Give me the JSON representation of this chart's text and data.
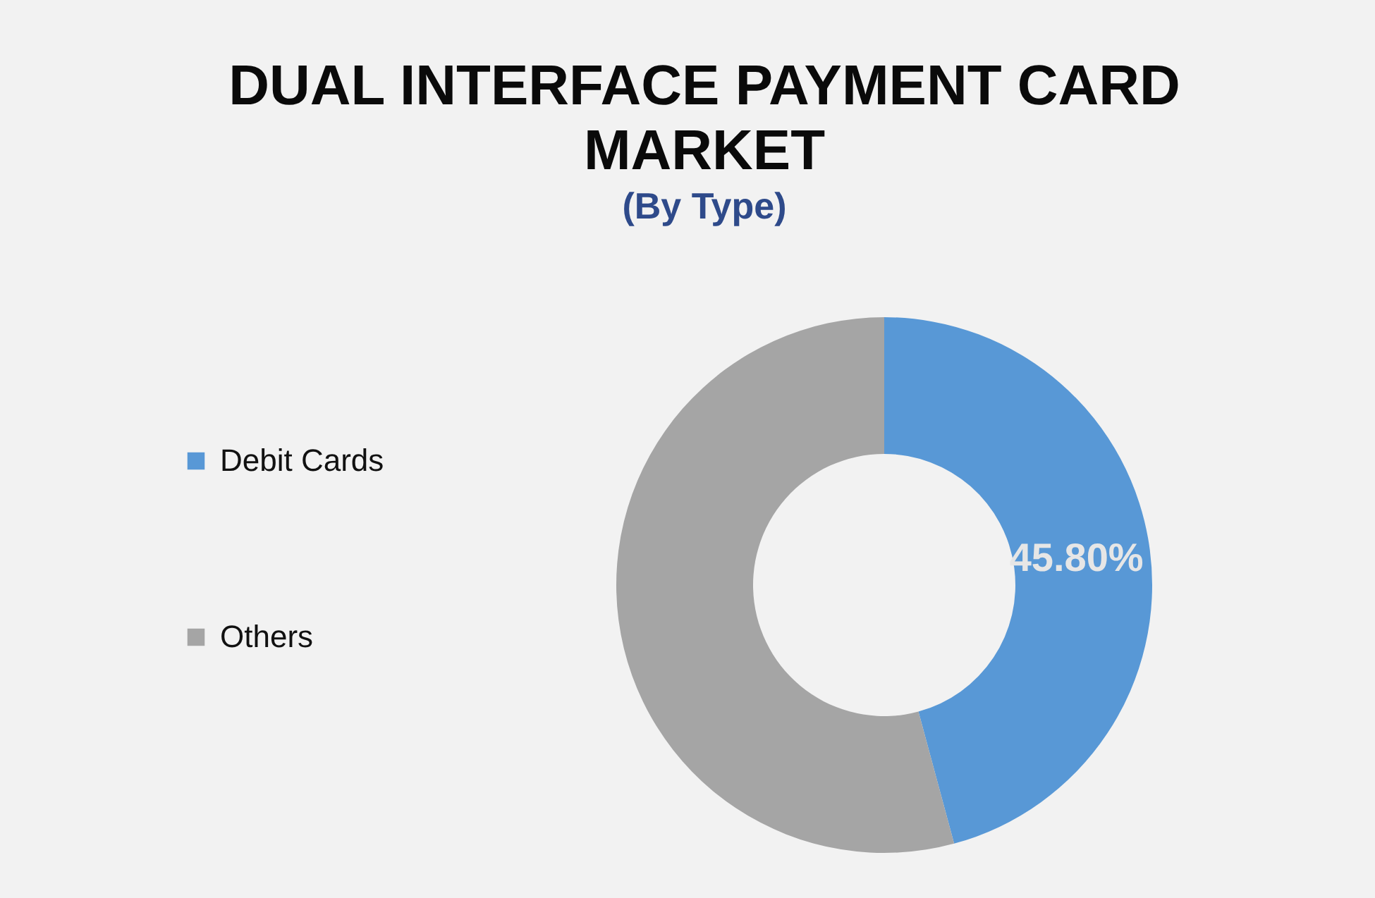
{
  "chart_data": {
    "type": "donut",
    "title": "DUAL INTERFACE PAYMENT CARD MARKET",
    "subtitle": "(By Type)",
    "categories": [
      "Debit Cards",
      "Others"
    ],
    "values": [
      45.8,
      54.2
    ],
    "colors": [
      "#5898d6",
      "#a5a5a5"
    ],
    "value_labels": [
      "45.80%",
      null
    ],
    "legend": "left"
  }
}
